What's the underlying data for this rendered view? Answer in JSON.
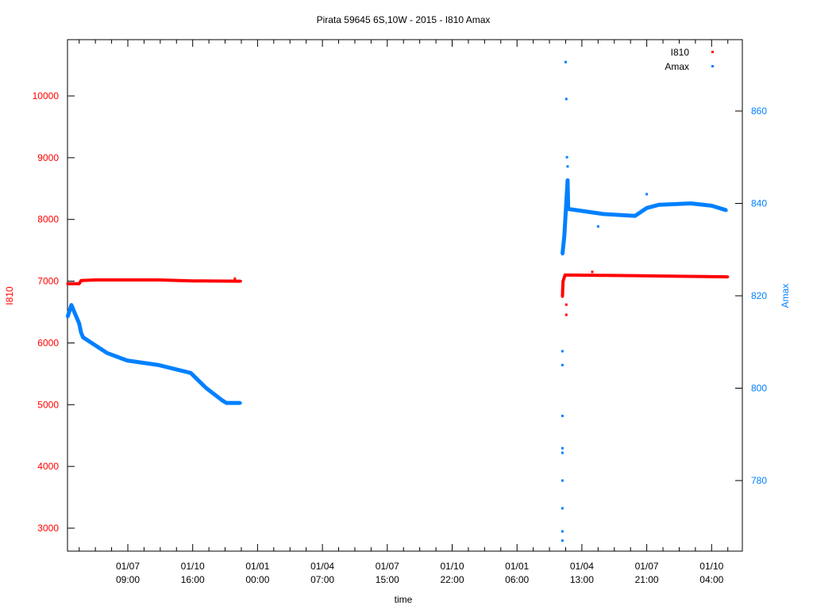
{
  "chart_data": {
    "type": "scatter",
    "title": "Pirata 59645 6S,10W - 2015 - I810 Amax",
    "xlabel": "time",
    "ylabel_left": "I810",
    "ylabel_right": "Amax",
    "x_units": "major tick index",
    "xlim": [
      -0.93,
      9.47
    ],
    "ylim_left": [
      2620,
      10910
    ],
    "ylim_right": [
      766,
      876
    ],
    "x_ticks": [
      {
        "date": "01/07",
        "time": "09:00"
      },
      {
        "date": "01/10",
        "time": "16:00"
      },
      {
        "date": "01/01",
        "time": "00:00"
      },
      {
        "date": "01/04",
        "time": "07:00"
      },
      {
        "date": "01/07",
        "time": "15:00"
      },
      {
        "date": "01/10",
        "time": "22:00"
      },
      {
        "date": "01/01",
        "time": "06:00"
      },
      {
        "date": "01/04",
        "time": "13:00"
      },
      {
        "date": "01/07",
        "time": "21:00"
      },
      {
        "date": "01/10",
        "time": "04:00"
      }
    ],
    "y_ticks_left": [
      3000,
      4000,
      5000,
      6000,
      7000,
      8000,
      9000,
      10000
    ],
    "y_ticks_right": [
      780,
      800,
      820,
      840,
      860
    ],
    "legend_position": "top-right",
    "series": [
      {
        "name": "I810",
        "axis": "left",
        "color": "#ff0000",
        "segments": [
          [
            [
              -0.93,
              6960
            ],
            [
              -0.75,
              6960
            ],
            [
              -0.72,
              7010
            ],
            [
              -0.5,
              7020
            ],
            [
              0.48,
              7020
            ],
            [
              1.0,
              7005
            ],
            [
              1.74,
              7000
            ]
          ],
          [
            [
              6.7,
              6750
            ],
            [
              6.71,
              7000
            ],
            [
              6.74,
              7100
            ],
            [
              7.3,
              7095
            ],
            [
              7.82,
              7090
            ],
            [
              8.5,
              7080
            ],
            [
              9.25,
              7070
            ]
          ]
        ],
        "outliers": [
          [
            6.76,
            6455
          ],
          [
            6.76,
            6620
          ],
          [
            6.7,
            6850
          ],
          [
            7.16,
            7150
          ],
          [
            1.65,
            7040
          ]
        ]
      },
      {
        "name": "Amax",
        "axis": "right",
        "color": "#0080ff",
        "segments": [
          [
            [
              -0.93,
              815.4
            ],
            [
              -0.87,
              818
            ],
            [
              -0.75,
              814
            ],
            [
              -0.72,
              812
            ],
            [
              -0.69,
              811
            ],
            [
              -0.32,
              807.6
            ],
            [
              -0.01,
              806
            ],
            [
              0.48,
              805
            ],
            [
              0.97,
              803.3
            ],
            [
              1.21,
              800
            ],
            [
              1.46,
              797.3
            ],
            [
              1.52,
              796.8
            ],
            [
              1.74,
              796.8
            ]
          ],
          [
            [
              6.7,
              829
            ],
            [
              6.73,
              833
            ],
            [
              6.78,
              845
            ],
            [
              6.79,
              838.8
            ],
            [
              7.33,
              837.7
            ],
            [
              7.82,
              837.3
            ],
            [
              8.0,
              839
            ],
            [
              8.19,
              839.7
            ],
            [
              8.68,
              840
            ],
            [
              9.0,
              839.5
            ],
            [
              9.23,
              838.5
            ]
          ]
        ],
        "outliers": [
          [
            6.7,
            767
          ],
          [
            6.7,
            769
          ],
          [
            6.7,
            774
          ],
          [
            6.7,
            780
          ],
          [
            6.7,
            786
          ],
          [
            6.7,
            787
          ],
          [
            6.7,
            794
          ],
          [
            6.7,
            805
          ],
          [
            6.7,
            808
          ],
          [
            6.72,
            830
          ],
          [
            6.74,
            834
          ],
          [
            6.75,
            870.6
          ],
          [
            6.76,
            862.6
          ],
          [
            6.77,
            850
          ],
          [
            6.78,
            848
          ],
          [
            7.25,
            835
          ],
          [
            8.0,
            842
          ]
        ]
      }
    ]
  }
}
